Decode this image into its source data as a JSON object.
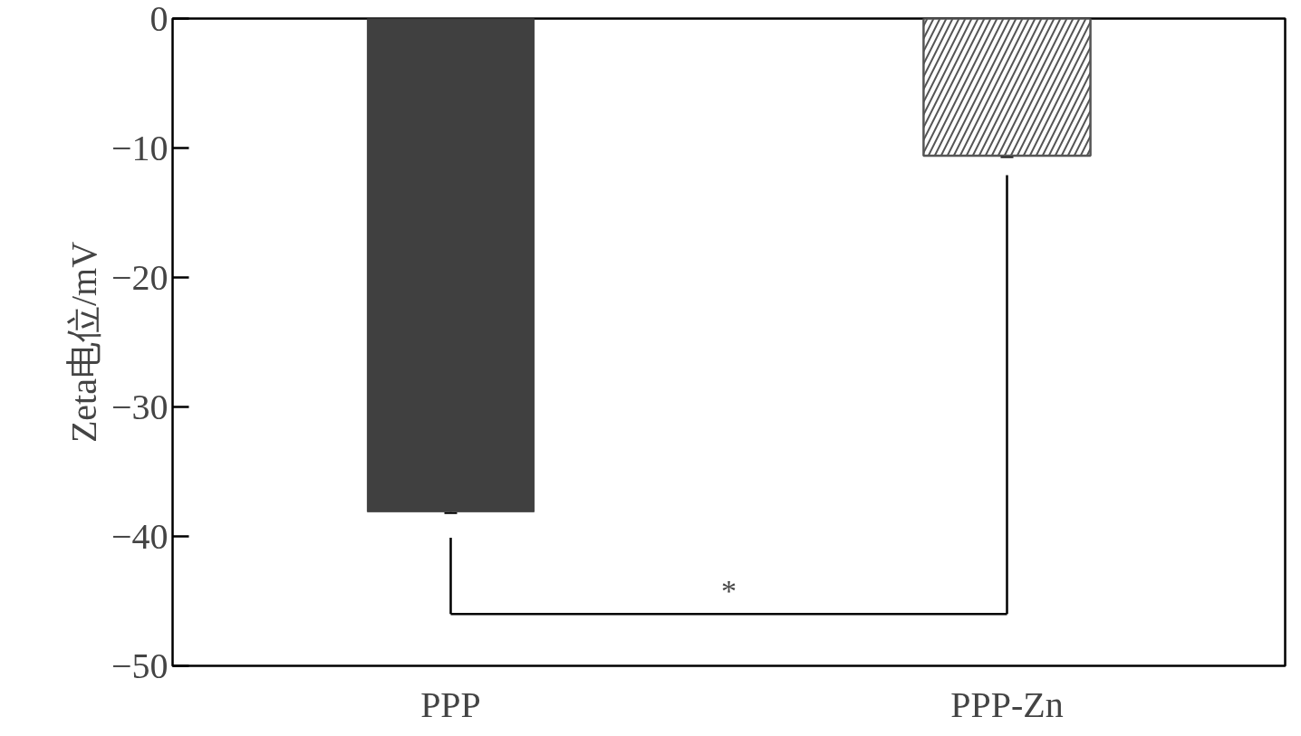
{
  "chart_data": {
    "type": "bar",
    "categories": [
      "PPP",
      "PPP-Zn"
    ],
    "values": [
      -38.1,
      -10.6
    ],
    "errors": [
      0.1,
      0.1
    ],
    "colors": [
      "#404040",
      "#555555"
    ],
    "ylabel": "Zeta电位/mV",
    "ylim": [
      -50,
      0
    ],
    "yticks": [
      0,
      -10,
      -20,
      -30,
      -40,
      -50
    ],
    "grid": false,
    "annotations": [
      "*"
    ]
  }
}
